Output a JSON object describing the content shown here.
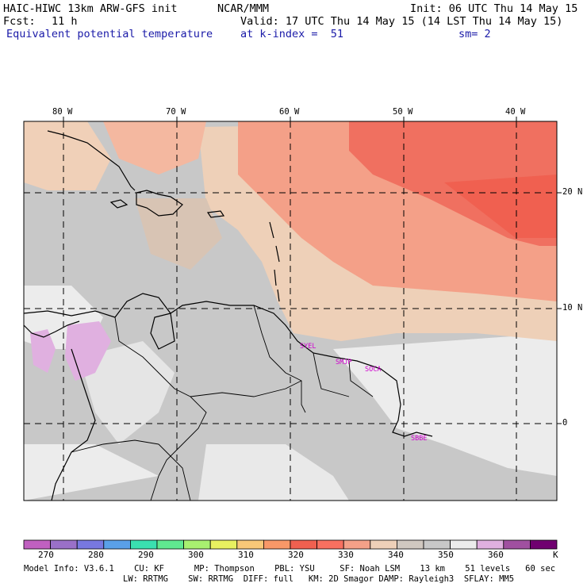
{
  "header": {
    "model": "HAIC-HIWC 13km ARW-GFS init",
    "org": "NCAR/MMM",
    "init": "Init: 06 UTC Thu 14 May 15",
    "fcst_label": "Fcst:",
    "fcst_value": "11 h",
    "valid": "Valid: 17 UTC Thu 14 May 15 (14 LST Thu 14 May 15)",
    "field": "Equivalent potential temperature",
    "level": "at k-index =  51",
    "smoothing": "sm= 2"
  },
  "map": {
    "lon_ticks": [
      "80 W",
      "70 W",
      "60 W",
      "50 W",
      "40 W"
    ],
    "lat_ticks": [
      "20 N",
      "10 N",
      "0"
    ],
    "sites": [
      "SYEL",
      "SMJP",
      "SOCA",
      "SBBE"
    ]
  },
  "colorbar": {
    "unit": "K",
    "tick_labels": [
      "270",
      "280",
      "290",
      "300",
      "310",
      "320",
      "330",
      "340",
      "350",
      "360"
    ],
    "colors": [
      "#c060c0",
      "#9a70c8",
      "#7878e0",
      "#5aa0e8",
      "#3ae0b0",
      "#60e890",
      "#a8f070",
      "#e8f060",
      "#f8c878",
      "#f89868",
      "#f06050",
      "#f87060",
      "#f4a088",
      "#eed0b8",
      "#d0c8c0",
      "#c8c8c8",
      "#ececec",
      "#e0b0e0",
      "#a050a0",
      "#700070"
    ]
  },
  "footer": {
    "line1": "Model Info: V3.6.1    CU: KF      MP: Thompson    PBL: YSU     SF: Noah LSM    13 km    51 levels   60 sec",
    "line2": "LW: RRTMG    SW: RRTMG  DIFF: full   KM: 2D Smagor DAMP: Rayleigh3  SFLAY: MM5"
  }
}
